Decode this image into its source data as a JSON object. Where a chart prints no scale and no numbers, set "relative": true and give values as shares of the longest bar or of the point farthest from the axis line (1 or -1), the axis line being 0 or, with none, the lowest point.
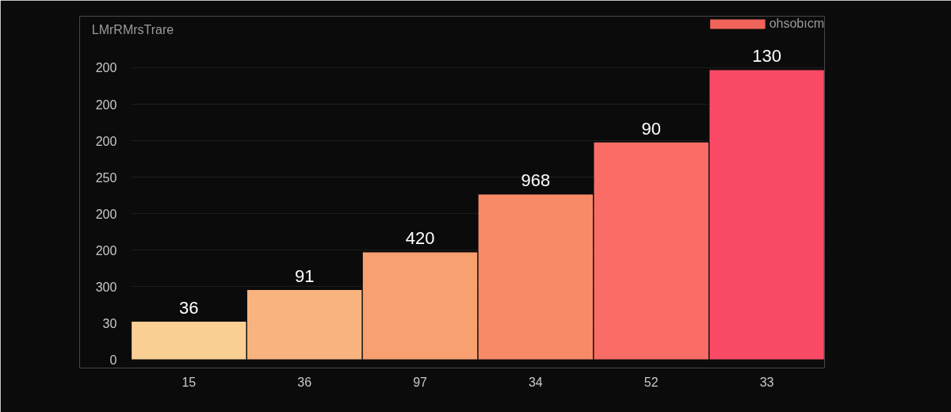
{
  "chart_data": {
    "type": "bar",
    "title": "LMrRMrsTrare",
    "relative": true,
    "categories": [
      "15",
      "36",
      "97",
      "34",
      "52",
      "33"
    ],
    "series": [
      {
        "name": "ohsobıcm",
        "color": "#f0645a",
        "colors": [
          "#f9cf94",
          "#f9b37e",
          "#f9a070",
          "#f98a68",
          "#f96d66",
          "#fb4a66"
        ],
        "values": [
          0.13,
          0.24,
          0.37,
          0.57,
          0.75,
          1
        ]
      }
    ],
    "annotations": [
      "0",
      "30",
      "300",
      "200",
      "200",
      "250",
      "200",
      "200",
      "200",
      {
        "text": "36",
        "x": "15",
        "y": 0.13
      },
      {
        "text": "91",
        "x": "36",
        "y": 0.24
      },
      {
        "text": "420",
        "x": "97",
        "y": 0.37
      },
      {
        "text": "968",
        "x": "34",
        "y": 0.57
      },
      {
        "text": "90",
        "x": "52",
        "y": 0.75
      },
      {
        "text": "130",
        "x": "33",
        "y": 1
      }
    ],
    "legend": "top right"
  }
}
